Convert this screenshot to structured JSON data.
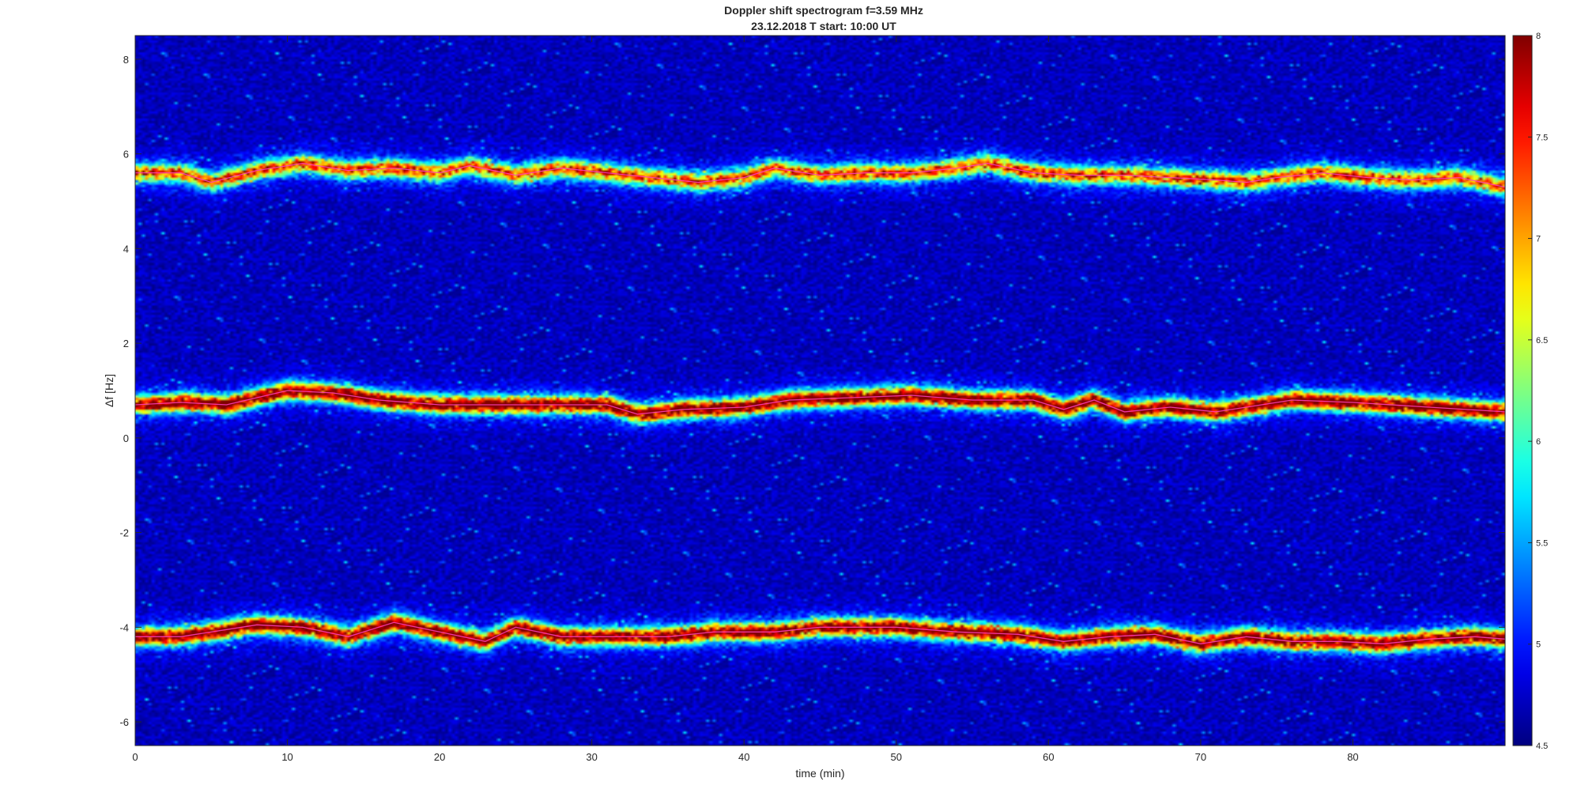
{
  "chart_data": {
    "type": "heatmap",
    "title": "Doppler shift spectrogram f=3.59 MHz",
    "subtitle": "23.12.2018   T start: 10:00 UT",
    "xlabel": "time (min)",
    "ylabel": "Δf [Hz]",
    "xlim": [
      0,
      90
    ],
    "ylim": [
      -6.5,
      8.5
    ],
    "x_ticks": [
      "0",
      "10",
      "20",
      "30",
      "40",
      "50",
      "60",
      "70",
      "80"
    ],
    "y_ticks": [
      "-6",
      "-4",
      "-2",
      "0",
      "2",
      "4",
      "6",
      "8"
    ],
    "colorbar": {
      "colormap": "jet",
      "clim": [
        4.5,
        8
      ],
      "ticks": [
        "4.5",
        "5",
        "5.5",
        "6",
        "6.5",
        "7",
        "7.5",
        "8"
      ]
    },
    "grid": false,
    "background_level": 4.7,
    "trace_color": "#ff40c0",
    "series": [
      {
        "time": [
          0,
          3,
          5,
          8,
          11,
          14,
          17,
          20,
          22,
          25,
          28,
          31,
          34,
          37,
          40,
          42,
          45,
          48,
          51,
          54,
          56,
          59,
          62,
          65,
          68,
          71,
          73,
          75,
          78,
          81,
          84,
          87,
          90
        ],
        "freq": [
          5.6,
          5.6,
          5.4,
          5.65,
          5.8,
          5.65,
          5.7,
          5.6,
          5.75,
          5.55,
          5.7,
          5.6,
          5.5,
          5.4,
          5.5,
          5.7,
          5.55,
          5.6,
          5.6,
          5.7,
          5.8,
          5.6,
          5.55,
          5.55,
          5.5,
          5.45,
          5.4,
          5.5,
          5.6,
          5.5,
          5.45,
          5.5,
          5.3
        ],
        "peak_level": 7.0
      },
      {
        "time": [
          0,
          3,
          6,
          8,
          10,
          13,
          16,
          20,
          24,
          28,
          31,
          33,
          36,
          40,
          43,
          47,
          51,
          55,
          59,
          61,
          63,
          65,
          68,
          71,
          73,
          76,
          80,
          85,
          90
        ],
        "freq": [
          0.7,
          0.75,
          0.7,
          0.85,
          1.0,
          0.95,
          0.8,
          0.7,
          0.7,
          0.7,
          0.7,
          0.5,
          0.6,
          0.65,
          0.8,
          0.85,
          0.9,
          0.8,
          0.8,
          0.6,
          0.8,
          0.55,
          0.65,
          0.55,
          0.65,
          0.8,
          0.75,
          0.65,
          0.55
        ],
        "peak_level": 7.9
      },
      {
        "time": [
          0,
          3,
          6,
          8,
          11,
          14,
          17,
          20,
          23,
          25,
          28,
          32,
          35,
          38,
          42,
          45,
          50,
          54,
          58,
          61,
          64,
          67,
          70,
          73,
          76,
          79,
          82,
          85,
          88,
          90
        ],
        "freq": [
          -4.2,
          -4.2,
          -4.05,
          -3.95,
          -4.0,
          -4.2,
          -3.9,
          -4.1,
          -4.3,
          -4.0,
          -4.2,
          -4.2,
          -4.2,
          -4.1,
          -4.1,
          -4.0,
          -4.0,
          -4.1,
          -4.15,
          -4.3,
          -4.2,
          -4.15,
          -4.35,
          -4.2,
          -4.3,
          -4.3,
          -4.35,
          -4.25,
          -4.2,
          -4.25
        ],
        "peak_level": 7.8
      }
    ]
  }
}
